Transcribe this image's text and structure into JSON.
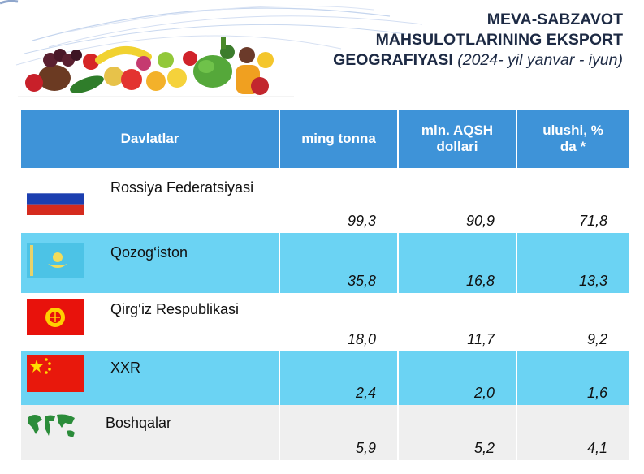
{
  "title": {
    "line1": "MEVA-SABZAVOT",
    "line2": "MAHSULOTLARINING EKSPORT",
    "line3": "GEOGRAFIYASI",
    "period": "(2024- yil yanvar - iyun)"
  },
  "table": {
    "headers": {
      "country": "Davlatlar",
      "tonnes": "ming tonna",
      "usd": "mln. AQSH dollari",
      "share": "ulushi, % da *"
    },
    "rows": [
      {
        "country": "Rossiya Federatsiyasi",
        "tonnes": "99,3",
        "usd": "90,9",
        "share": "71,8",
        "icon": "russia-flag-icon"
      },
      {
        "country": "Qozog‘iston",
        "tonnes": "35,8",
        "usd": "16,8",
        "share": "13,3",
        "icon": "kazakhstan-flag-icon"
      },
      {
        "country": "Qirg‘iz Respublikasi",
        "tonnes": "18,0",
        "usd": "11,7",
        "share": "9,2",
        "icon": "kyrgyzstan-flag-icon"
      },
      {
        "country": "XXR",
        "tonnes": "2,4",
        "usd": "2,0",
        "share": "1,6",
        "icon": "china-flag-icon"
      },
      {
        "country": "Boshqalar",
        "tonnes": "5,9",
        "usd": "5,2",
        "share": "4,1",
        "icon": "world-map-icon"
      }
    ]
  },
  "colors": {
    "header_blue": "#3e93d8",
    "row_cyan": "#6bd3f3",
    "row_gray": "#efefef"
  }
}
